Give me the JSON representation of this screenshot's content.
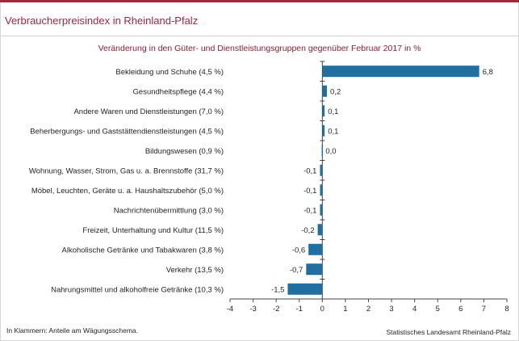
{
  "title": "Verbraucherpreisindex in Rheinland-Pfalz",
  "subtitle": "Veränderung in den Güter- und Dienstleistungsgruppen gegenüber Februar 2017 in %",
  "note": "In Klammern: Anteile am Wägungsschema.",
  "source": "Statistisches Landesamt Rheinland-Pfalz",
  "chart_data": {
    "type": "bar",
    "orientation": "horizontal",
    "categories": [
      "Bekleidung und Schuhe (4,5 %)",
      "Gesundheitspflege (4,4 %)",
      "Andere Waren und Dienstleistungen (7,0 %)",
      "Beherbergungs- und Gaststättendienstleistungen (4,5 %)",
      "Bildungswesen (0,9 %)",
      "Wohnung, Wasser, Strom, Gas u. a. Brennstoffe (31,7 %)",
      "Möbel, Leuchten, Geräte u. a. Haushaltszubehör (5,0 %)",
      "Nachrichtenübermittlung (3,0 %)",
      "Freizeit, Unterhaltung und Kultur (11,5 %)",
      "Alkoholische Getränke und Tabakwaren (3,8 %)",
      "Verkehr (13,5 %)",
      "Nahrungsmittel und alkoholfreie Getränke (10,3 %)"
    ],
    "values": [
      6.8,
      0.2,
      0.1,
      0.1,
      0.0,
      -0.1,
      -0.1,
      -0.1,
      -0.2,
      -0.6,
      -0.7,
      -1.5
    ],
    "value_labels": [
      "6,8",
      "0,2",
      "0,1",
      "0,1",
      "0,0",
      "-0,1",
      "-0,1",
      "-0,1",
      "-0,2",
      "-0,6",
      "-0,7",
      "-1,5"
    ],
    "xlim": [
      -4,
      8
    ],
    "xticks": [
      -4,
      -3,
      -2,
      -1,
      0,
      1,
      2,
      3,
      4,
      5,
      6,
      7,
      8
    ],
    "xtick_labels": [
      "-4",
      "-3",
      "-2",
      "-1",
      "0",
      "1",
      "2",
      "3",
      "4",
      "5",
      "6",
      "7",
      "8"
    ],
    "grid": false,
    "bar_color": "#1f6fa1",
    "accent_color": "#a6243c"
  }
}
